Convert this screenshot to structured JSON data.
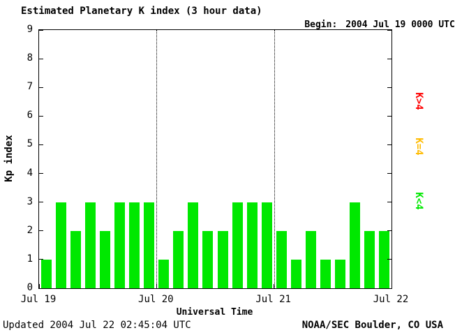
{
  "header": {
    "title": "Estimated Planetary K index (3 hour data)",
    "begin_label": "Begin:",
    "begin_value": "2004 Jul 19 0000 UTC"
  },
  "axes": {
    "y_title": "Kp index",
    "x_title": "Universal Time"
  },
  "legend": {
    "items": [
      {
        "label": "K>4",
        "color": "#ff0000"
      },
      {
        "label": "K=4",
        "color": "#ffbb00"
      },
      {
        "label": "K<4",
        "color": "#00e800"
      }
    ]
  },
  "footer": {
    "updated": "Updated 2004 Jul 22 02:45:04 UTC",
    "source": "NOAA/SEC Boulder, CO USA"
  },
  "chart_data": {
    "type": "bar",
    "title": "Estimated Planetary K index (3 hour data)",
    "xlabel": "Universal Time",
    "ylabel": "Kp index",
    "ylim": [
      0,
      9
    ],
    "y_ticks": [
      0,
      1,
      2,
      3,
      4,
      5,
      6,
      7,
      8,
      9
    ],
    "x_tick_labels": [
      "Jul 19",
      "Jul 20",
      "Jul 21",
      "Jul 22"
    ],
    "interval_hours": 3,
    "bars_per_day": 8,
    "bar_color_rule": {
      "lt4": "#00e800",
      "eq4": "#ffbb00",
      "gt4": "#ff0000"
    },
    "values": [
      1,
      3,
      2,
      3,
      2,
      3,
      3,
      3,
      1,
      2,
      3,
      2,
      2,
      3,
      3,
      3,
      2,
      1,
      2,
      1,
      1,
      3,
      2,
      2
    ],
    "grid": "dotted vertical lines at interior day boundaries",
    "legend_position": "right side, labels rotated 90 degrees"
  }
}
